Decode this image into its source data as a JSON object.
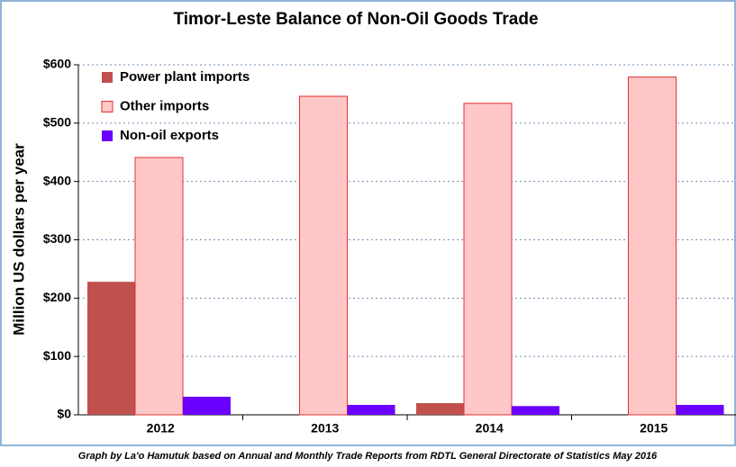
{
  "chart_data": {
    "type": "bar",
    "title": "Timor-Leste Balance of Non-Oil Goods Trade",
    "y_label": "Million US dollars per year",
    "footer": "Graph by La'o Hamutuk based on Annual and Monthly Trade Reports from RDTL General Directorate of Statistics  May 2016",
    "categories": [
      "2012",
      "2013",
      "2014",
      "2015"
    ],
    "series": [
      {
        "name": "Power plant imports",
        "color": "#c0504d",
        "values": [
          228,
          0,
          20,
          0
        ]
      },
      {
        "name": "Other imports",
        "color": "#ffc7c7",
        "values": [
          441,
          546,
          534,
          579
        ]
      },
      {
        "name": "Non-oil exports",
        "color": "#6a00ff",
        "values": [
          31,
          17,
          15,
          17
        ]
      }
    ],
    "ylim": [
      0,
      600
    ],
    "yticks": [
      {
        "value": 0,
        "label": "$0"
      },
      {
        "value": 100,
        "label": "$100"
      },
      {
        "value": 200,
        "label": "$200"
      },
      {
        "value": 300,
        "label": "$300"
      },
      {
        "value": 400,
        "label": "$400"
      },
      {
        "value": 500,
        "label": "$500"
      },
      {
        "value": 600,
        "label": "$600"
      }
    ],
    "grid": true,
    "legend": "top-left"
  }
}
